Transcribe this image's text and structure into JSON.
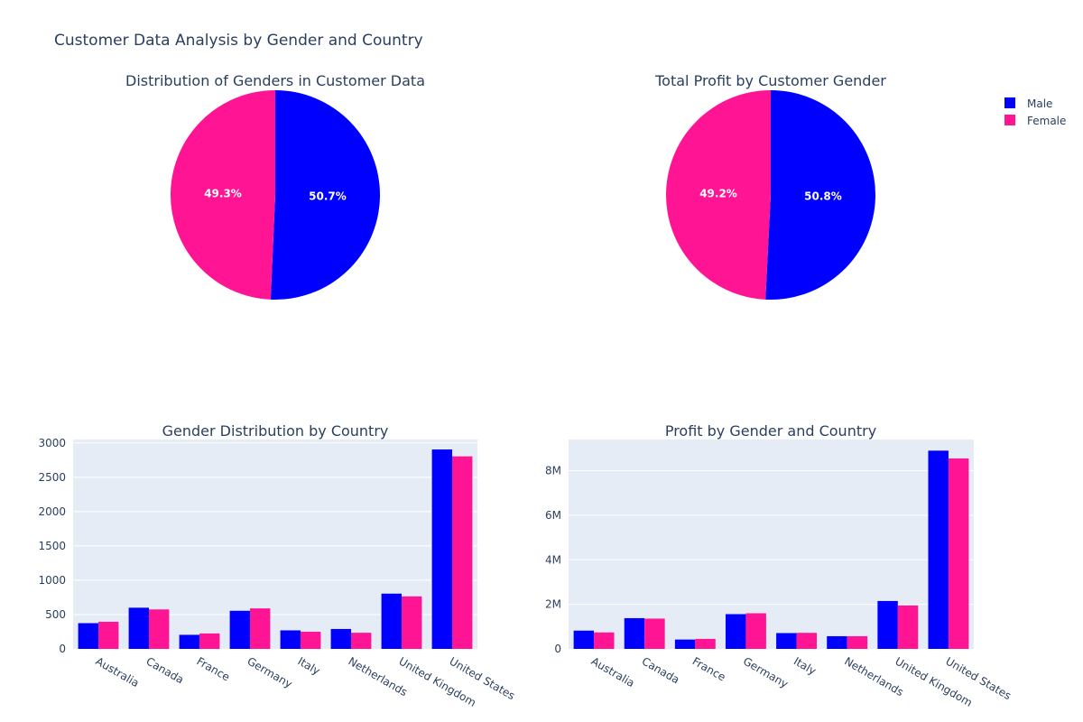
{
  "figure_title": "Customer Data Analysis by Gender and Country",
  "colors": {
    "Male": "#0000ff",
    "Female": "#ff1493",
    "plot_bg": "#e5ecf6",
    "grid": "#ffffff",
    "text": "#2a3f5f"
  },
  "legend": {
    "placement": "top-right",
    "items": [
      "Male",
      "Female"
    ]
  },
  "chart_data": [
    {
      "type": "pie",
      "title": "Distribution of Genders in Customer Data",
      "labels": [
        "Male",
        "Female"
      ],
      "values": [
        50.7,
        49.3
      ],
      "value_labels": [
        "50.7%",
        "49.3%"
      ]
    },
    {
      "type": "pie",
      "title": "Total Profit by Customer Gender",
      "labels": [
        "Male",
        "Female"
      ],
      "values": [
        50.8,
        49.2
      ],
      "value_labels": [
        "50.8%",
        "49.2%"
      ]
    },
    {
      "type": "bar",
      "title": "Gender Distribution by Country",
      "categories": [
        "Australia",
        "Canada",
        "France",
        "Germany",
        "Italy",
        "Netherlands",
        "United Kingdom",
        "United States"
      ],
      "series": [
        {
          "name": "Male",
          "values": [
            375,
            600,
            205,
            555,
            270,
            290,
            805,
            2905
          ]
        },
        {
          "name": "Female",
          "values": [
            395,
            575,
            225,
            590,
            250,
            235,
            765,
            2805
          ]
        }
      ],
      "ylim": [
        0,
        3050
      ],
      "yticks": [
        0,
        500,
        1000,
        1500,
        2000,
        2500,
        3000
      ],
      "ytick_labels": [
        "0",
        "500",
        "1000",
        "1500",
        "2000",
        "2500",
        "3000"
      ],
      "grid": true
    },
    {
      "type": "bar",
      "title": "Profit by Gender and Country",
      "categories": [
        "Australia",
        "Canada",
        "France",
        "Germany",
        "Italy",
        "Netherlands",
        "United Kingdom",
        "United States"
      ],
      "series": [
        {
          "name": "Male",
          "values": [
            820000,
            1380000,
            420000,
            1560000,
            710000,
            570000,
            2150000,
            8900000
          ]
        },
        {
          "name": "Female",
          "values": [
            740000,
            1360000,
            450000,
            1600000,
            720000,
            570000,
            1950000,
            8550000
          ]
        }
      ],
      "ylim": [
        0,
        9400000
      ],
      "yticks": [
        0,
        2000000,
        4000000,
        6000000,
        8000000
      ],
      "ytick_labels": [
        "0",
        "2M",
        "4M",
        "6M",
        "8M"
      ],
      "grid": true
    }
  ]
}
